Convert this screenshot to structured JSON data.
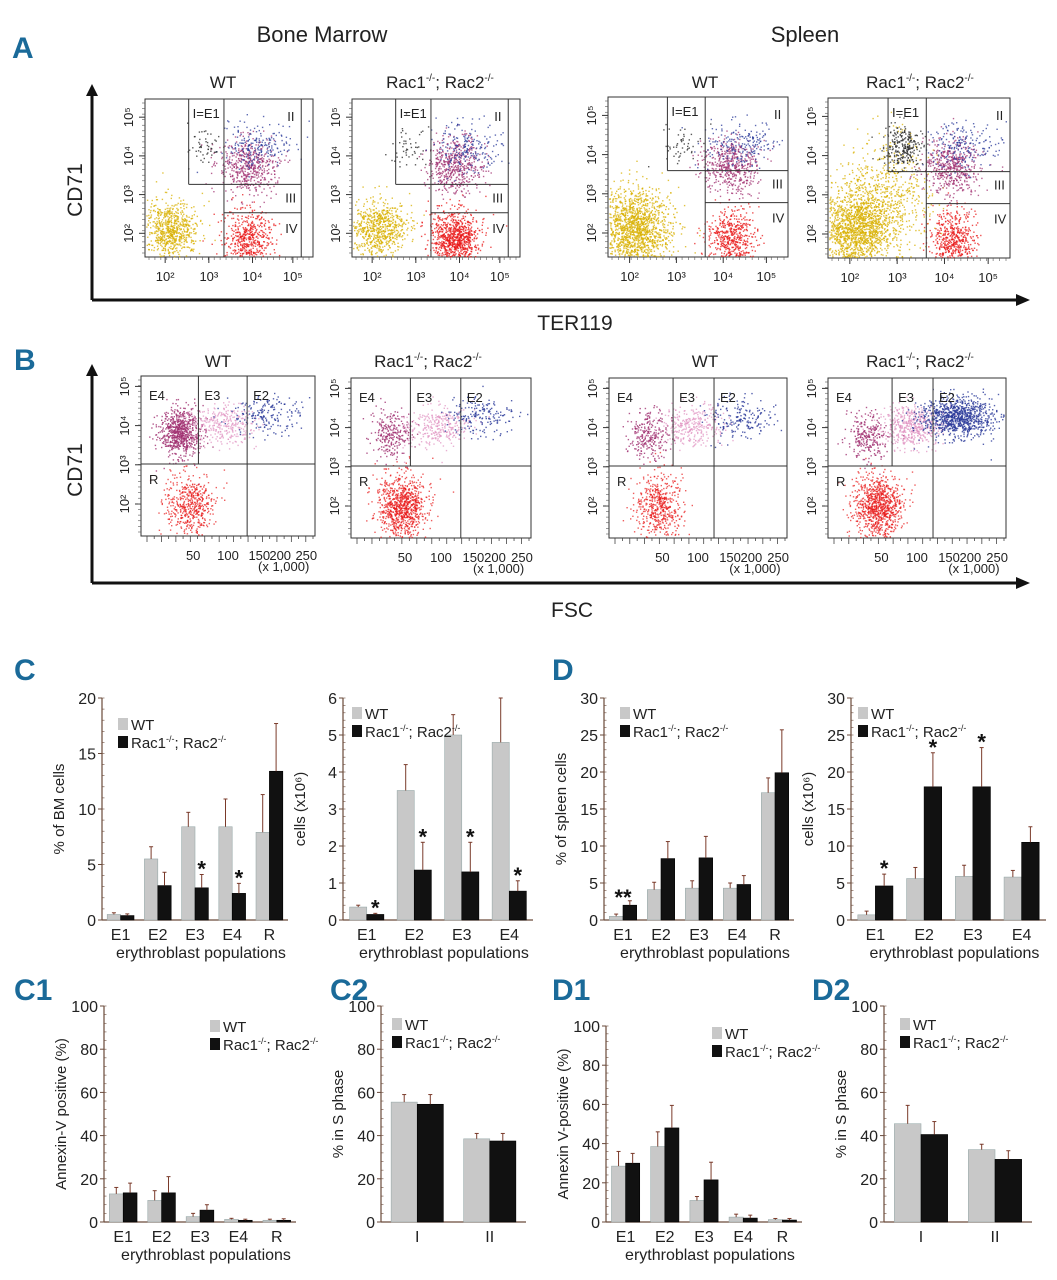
{
  "panel_labels": {
    "A": "A",
    "B": "B",
    "C": "C",
    "D": "D",
    "C1": "C1",
    "C2": "C2",
    "D1": "D1",
    "D2": "D2"
  },
  "section_titles": {
    "bone_marrow": "Bone Marrow",
    "spleen": "Spleen"
  },
  "genotypes": {
    "wt": "WT",
    "ko": "Rac1-/-; Rac2-/-",
    "ko_base1": "Rac1",
    "ko_sup": "-/-",
    "ko_mid": "; Rac2"
  },
  "colors": {
    "wt_bar": "#c8c8c8",
    "ko_bar": "#111111",
    "panel_label": "#1a6a99",
    "e1": "#222222",
    "e2": "#2a3a9a",
    "e3": "#e090c0",
    "e4": "#a03070",
    "r": "#e81818",
    "neg": "#d8b000",
    "err": "#7a3a2a"
  },
  "flow_A": {
    "x_axis_label": "TER119",
    "y_axis_label": "CD71",
    "x_ticks": [
      "10²",
      "10³",
      "10⁴",
      "10⁵"
    ],
    "y_ticks": [
      "10²",
      "10³",
      "10⁴",
      "10⁵"
    ],
    "gates": [
      "I=E1",
      "II",
      "III",
      "IV"
    ],
    "plots": [
      {
        "tissue": "Bone Marrow",
        "genotype": "WT"
      },
      {
        "tissue": "Bone Marrow",
        "genotype": "Rac1-/-; Rac2-/-"
      },
      {
        "tissue": "Spleen",
        "genotype": "WT"
      },
      {
        "tissue": "Spleen",
        "genotype": "Rac1-/-; Rac2-/-"
      }
    ]
  },
  "flow_B": {
    "x_axis_label": "FSC",
    "y_axis_label": "CD71",
    "x_ticks": [
      "50",
      "100",
      "150",
      "200",
      "250"
    ],
    "x_unit": "(x 1,000)",
    "y_ticks": [
      "10²",
      "10³",
      "10⁴",
      "10⁵"
    ],
    "gates": [
      "E4",
      "E3",
      "E2",
      "R"
    ],
    "plots": [
      {
        "tissue": "Bone Marrow",
        "genotype": "WT"
      },
      {
        "tissue": "Bone Marrow",
        "genotype": "Rac1-/-; Rac2-/-"
      },
      {
        "tissue": "Spleen",
        "genotype": "WT"
      },
      {
        "tissue": "Spleen",
        "genotype": "Rac1-/-; Rac2-/-"
      }
    ]
  },
  "chart_data": [
    {
      "id": "C-left",
      "type": "bar",
      "title": "",
      "xlabel": "erythroblast populations",
      "ylabel": "% of BM cells",
      "categories": [
        "E1",
        "E2",
        "E3",
        "E4",
        "R"
      ],
      "ylim": [
        0,
        20
      ],
      "yticks": [
        0,
        5,
        10,
        15,
        20
      ],
      "series": [
        {
          "name": "WT",
          "values": [
            0.5,
            5.5,
            8.4,
            8.4,
            7.9
          ],
          "errors": [
            0.15,
            1.1,
            1.3,
            2.5,
            3.4
          ]
        },
        {
          "name": "Rac1-/-; Rac2-/-",
          "values": [
            0.4,
            3.1,
            2.9,
            2.4,
            13.4
          ],
          "errors": [
            0.15,
            1.2,
            1.2,
            0.9,
            4.3
          ]
        }
      ],
      "significance": [
        {
          "category": "E3",
          "label": "*"
        },
        {
          "category": "E4",
          "label": "*"
        }
      ],
      "legend": "top-left"
    },
    {
      "id": "C-right",
      "type": "bar",
      "title": "",
      "xlabel": "erythroblast populations",
      "ylabel": "cells (x10⁶)",
      "categories": [
        "E1",
        "E2",
        "E3",
        "E4"
      ],
      "ylim": [
        0,
        6
      ],
      "yticks": [
        0,
        1,
        2,
        3,
        4,
        5,
        6
      ],
      "series": [
        {
          "name": "WT",
          "values": [
            0.35,
            3.5,
            5.0,
            4.8
          ],
          "errors": [
            0.05,
            0.7,
            0.55,
            1.2
          ]
        },
        {
          "name": "Rac1-/-; Rac2-/-",
          "values": [
            0.15,
            1.35,
            1.3,
            0.78
          ],
          "errors": [
            0.03,
            0.75,
            0.8,
            0.28
          ]
        }
      ],
      "significance": [
        {
          "category": "E1",
          "label": "*"
        },
        {
          "category": "E2",
          "label": "*"
        },
        {
          "category": "E3",
          "label": "*"
        },
        {
          "category": "E4",
          "label": "*"
        }
      ],
      "legend": "top-left"
    },
    {
      "id": "D-left",
      "type": "bar",
      "title": "",
      "xlabel": "erythroblast populations",
      "ylabel": "% of spleen cells",
      "categories": [
        "E1",
        "E2",
        "E3",
        "E4",
        "R"
      ],
      "ylim": [
        0,
        30
      ],
      "yticks": [
        0,
        5,
        10,
        15,
        20,
        25,
        30
      ],
      "series": [
        {
          "name": "WT",
          "values": [
            0.5,
            4.1,
            4.3,
            4.3,
            17.2
          ],
          "errors": [
            0.3,
            1.0,
            1.0,
            0.7,
            2.0
          ]
        },
        {
          "name": "Rac1-/-; Rac2-/-",
          "values": [
            2.0,
            8.3,
            8.4,
            4.8,
            19.9
          ],
          "errors": [
            0.6,
            2.3,
            2.9,
            1.2,
            5.8
          ]
        }
      ],
      "significance": [
        {
          "category": "E1",
          "label": "**"
        }
      ],
      "legend": "top-left"
    },
    {
      "id": "D-right",
      "type": "bar",
      "title": "",
      "xlabel": "erythroblast populations",
      "ylabel": "cells (x10⁶)",
      "categories": [
        "E1",
        "E2",
        "E3",
        "E4"
      ],
      "ylim": [
        0,
        30
      ],
      "yticks": [
        0,
        5,
        10,
        15,
        20,
        25,
        30
      ],
      "series": [
        {
          "name": "WT",
          "values": [
            0.7,
            5.6,
            5.9,
            5.8
          ],
          "errors": [
            0.5,
            1.5,
            1.5,
            0.9
          ]
        },
        {
          "name": "Rac1-/-; Rac2-/-",
          "values": [
            4.6,
            18.0,
            18.0,
            10.5
          ],
          "errors": [
            1.6,
            4.6,
            5.3,
            2.1
          ]
        }
      ],
      "significance": [
        {
          "category": "E1",
          "label": "*"
        },
        {
          "category": "E2",
          "label": "*"
        },
        {
          "category": "E3",
          "label": "*"
        }
      ],
      "legend": "top-left"
    },
    {
      "id": "C1",
      "type": "bar",
      "title": "",
      "xlabel": "erythroblast populations",
      "ylabel": "Annexin-V positive (%)",
      "categories": [
        "E1",
        "E2",
        "E3",
        "E4",
        "R"
      ],
      "ylim": [
        0,
        100
      ],
      "yticks": [
        0,
        20,
        40,
        60,
        80,
        100
      ],
      "series": [
        {
          "name": "WT",
          "values": [
            13,
            10,
            2.5,
            1.2,
            0.8
          ],
          "errors": [
            3,
            4.5,
            1.5,
            0.5,
            0.5
          ]
        },
        {
          "name": "Rac1-/-; Rac2-/-",
          "values": [
            13.5,
            13.5,
            5.5,
            0.8,
            0.8
          ],
          "errors": [
            4.5,
            7.5,
            2.5,
            0.5,
            0.7
          ]
        }
      ],
      "significance": [],
      "legend": "top-right"
    },
    {
      "id": "C2",
      "type": "bar",
      "title": "",
      "xlabel": "",
      "ylabel": "% in S phase",
      "categories": [
        "I",
        "II"
      ],
      "ylim": [
        0,
        100
      ],
      "yticks": [
        0,
        20,
        40,
        60,
        80,
        100
      ],
      "series": [
        {
          "name": "WT",
          "values": [
            55.5,
            38.5
          ],
          "errors": [
            3.5,
            2.5
          ]
        },
        {
          "name": "Rac1-/-; Rac2-/-",
          "values": [
            54.5,
            37.5
          ],
          "errors": [
            4.5,
            3.5
          ]
        }
      ],
      "significance": [],
      "legend": "top-left"
    },
    {
      "id": "D1",
      "type": "bar",
      "title": "",
      "xlabel": "erythroblast populations",
      "ylabel": "Annexin V-positive (%)",
      "categories": [
        "E1",
        "E2",
        "E3",
        "E4",
        "R"
      ],
      "ylim": [
        0,
        100
      ],
      "yticks": [
        0,
        20,
        40,
        60,
        80,
        100
      ],
      "series": [
        {
          "name": "WT",
          "values": [
            28.5,
            38.5,
            11,
            2.5,
            1.2
          ],
          "errors": [
            7.5,
            7.5,
            2,
            1.5,
            0.6
          ]
        },
        {
          "name": "Rac1-/-; Rac2-/-",
          "values": [
            30,
            48,
            21.5,
            2,
            1.0
          ],
          "errors": [
            5,
            11.5,
            9,
            1.5,
            0.8
          ]
        }
      ],
      "significance": [],
      "legend": "top-right"
    },
    {
      "id": "D2",
      "type": "bar",
      "title": "",
      "xlabel": "",
      "ylabel": "% in S phase",
      "categories": [
        "I",
        "II"
      ],
      "ylim": [
        0,
        100
      ],
      "yticks": [
        0,
        20,
        40,
        60,
        80,
        100
      ],
      "series": [
        {
          "name": "WT",
          "values": [
            45.5,
            33.5
          ],
          "errors": [
            8.5,
            2.5
          ]
        },
        {
          "name": "Rac1-/-; Rac2-/-",
          "values": [
            40.5,
            29
          ],
          "errors": [
            6,
            4
          ]
        }
      ],
      "significance": [],
      "legend": "top-left"
    }
  ]
}
